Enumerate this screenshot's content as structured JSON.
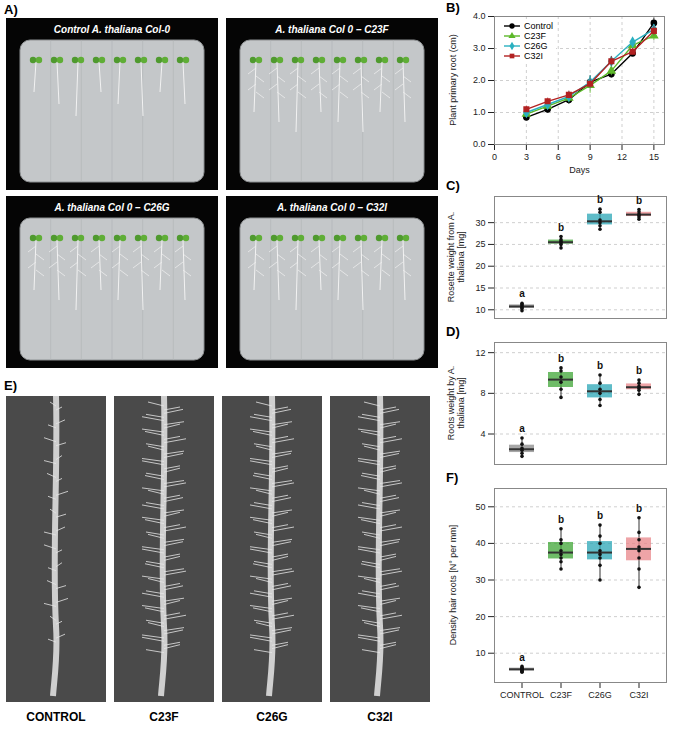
{
  "chart_data": [
    {
      "panel": "B)",
      "type": "line",
      "x_label": "Days",
      "y_label": "Plant primary root (cm)",
      "x": [
        3,
        5,
        7,
        9,
        11,
        13,
        15
      ],
      "xlim": [
        0,
        16
      ],
      "xticks": [
        0,
        3,
        6,
        9,
        12,
        15
      ],
      "ylim": [
        0,
        4
      ],
      "yticks": [
        0,
        1,
        2,
        3,
        4
      ],
      "grid": true,
      "legend": "top-left",
      "series": [
        {
          "name": "Control",
          "color": "#000000",
          "marker": "circle",
          "values": [
            0.85,
            1.1,
            1.4,
            1.95,
            2.2,
            2.85,
            3.8
          ],
          "errors": [
            0.1,
            0.12,
            0.15,
            0.2,
            0.12,
            0.1,
            0.15
          ]
        },
        {
          "name": "C23F",
          "color": "#5cb82a",
          "marker": "triangle",
          "values": [
            0.95,
            1.2,
            1.45,
            1.85,
            2.3,
            3.1,
            3.4
          ],
          "errors": [
            0.1,
            0.12,
            0.15,
            0.25,
            0.15,
            0.15,
            0.15
          ]
        },
        {
          "name": "C26G",
          "color": "#2ab0c0",
          "marker": "diamond",
          "values": [
            1.0,
            1.25,
            1.5,
            1.95,
            2.6,
            3.2,
            3.6
          ],
          "errors": [
            0.1,
            0.1,
            0.12,
            0.2,
            0.15,
            0.1,
            0.15
          ]
        },
        {
          "name": "C32I",
          "color": "#b22222",
          "marker": "square",
          "values": [
            1.1,
            1.35,
            1.55,
            1.9,
            2.6,
            2.9,
            3.55
          ],
          "errors": [
            0.1,
            0.1,
            0.12,
            0.15,
            0.15,
            0.1,
            0.15
          ]
        }
      ]
    },
    {
      "panel": "C)",
      "type": "box",
      "y_label": "Rosette weight from A. thaliana [mg]",
      "categories": [
        null,
        null,
        null,
        null
      ],
      "colors": [
        "#8a8a8a",
        "#3fa535",
        "#2aa6b5",
        "#e8868a"
      ],
      "values": [
        [
          9.8,
          10.3,
          10.6,
          10.9,
          11.2,
          11.5
        ],
        [
          24.2,
          25.0,
          25.3,
          25.7,
          26.1,
          26.8
        ],
        [
          28.5,
          29.3,
          30.0,
          30.6,
          32.4,
          33.1
        ],
        [
          30.8,
          31.3,
          31.7,
          32.0,
          32.5,
          33.0
        ]
      ],
      "annotations": [
        "a",
        "b",
        "b",
        "b"
      ],
      "ylim": [
        8,
        36
      ],
      "yticks": [
        10,
        15,
        20,
        25,
        30
      ],
      "grid": true,
      "tick_labels": "y"
    },
    {
      "panel": "D)",
      "type": "box",
      "y_label": "Roots weight by A. thaliana [mg]",
      "categories": [
        null,
        null,
        null,
        null
      ],
      "colors": [
        "#8a8a8a",
        "#3fa535",
        "#2aa6b5",
        "#e8868a"
      ],
      "values": [
        [
          1.8,
          2.1,
          2.4,
          2.6,
          3.0,
          3.6
        ],
        [
          7.6,
          8.4,
          9.1,
          9.6,
          10.2,
          10.5
        ],
        [
          6.8,
          7.4,
          8.0,
          8.4,
          9.0,
          9.8
        ],
        [
          7.9,
          8.3,
          8.5,
          8.7,
          9.0,
          9.3
        ]
      ],
      "annotations": [
        "a",
        "b",
        "b",
        "b"
      ],
      "ylim": [
        1,
        13
      ],
      "yticks": [
        4,
        8,
        12
      ],
      "grid": true,
      "tick_labels": "y"
    },
    {
      "panel": "F)",
      "type": "box",
      "y_label": "Density hair roots [N° per mm]",
      "categories": [
        "CONTROL",
        "C23F",
        "C26G",
        "C32I"
      ],
      "colors": [
        "#8a8a8a",
        "#3fa535",
        "#2aa6b5",
        "#e8868a"
      ],
      "values": [
        [
          4.8,
          5.1,
          5.2,
          5.5,
          5.7,
          5.9,
          6.0,
          6.4
        ],
        [
          33,
          35,
          36,
          37,
          38,
          40,
          41,
          44
        ],
        [
          30,
          34,
          36,
          37,
          38,
          40,
          42,
          45
        ],
        [
          28,
          33,
          36,
          38,
          39,
          41,
          43,
          47
        ]
      ],
      "annotations": [
        "a",
        "b",
        "b",
        "b"
      ],
      "ylim": [
        2,
        55
      ],
      "yticks": [
        10,
        20,
        30,
        40,
        50
      ],
      "grid": true
    }
  ],
  "photo_panels": [
    {
      "panel": "A)",
      "captions": [
        "Control A. thaliana Col-0",
        "A. thaliana Col 0 – C23F",
        "A. thaliana Col 0 – C26G",
        "A. thaliana Col 0 – C32I"
      ]
    },
    {
      "panel": "E)",
      "labels": [
        "CONTROL",
        "C23F",
        "C26G",
        "C32I"
      ]
    }
  ]
}
